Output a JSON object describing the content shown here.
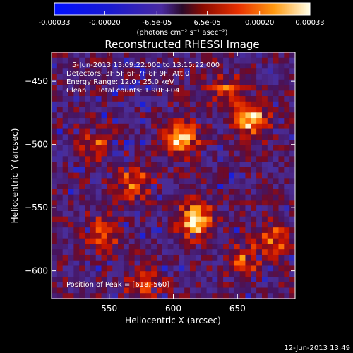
{
  "chart_data": {
    "type": "heatmap",
    "title": "Reconstructed RHESSI Image",
    "xlabel": "Heliocentric X (arcsec)",
    "ylabel": "Heliocentric Y (arcsec)",
    "xlim": [
      505,
      695
    ],
    "ylim": [
      -622,
      -427
    ],
    "x_ticks": [
      550,
      600,
      650
    ],
    "y_ticks": [
      -450,
      -500,
      -550,
      -600
    ],
    "colorbar": {
      "range": [
        -0.00033,
        0.00033
      ],
      "ticks": [
        {
          "value": -0.00033,
          "label": "-0.00033"
        },
        {
          "value": -0.0002,
          "label": "-0.00020"
        },
        {
          "value": -6.5e-05,
          "label": "-6.5e-05"
        },
        {
          "value": 6.5e-05,
          "label": "6.5e-05"
        },
        {
          "value": 0.0002,
          "label": "0.00020"
        },
        {
          "value": 0.00033,
          "label": "0.00033"
        }
      ],
      "unit_label": "(photons cm⁻² s⁻¹ asec⁻²)"
    },
    "annotations": [
      "5-Jun-2013 13:09:22.000 to 13:15:22.000",
      "Detectors: 3F 5F 6F 7F 8F 9F, Att 0",
      "Energy Range: 12.0 - 25.0 keV",
      "Clean     Total counts: 1.90E+04"
    ],
    "peak_label": "Position of Peak = [618,-560]",
    "peak_position": [
      618,
      -560
    ],
    "bright_sources": [
      {
        "x": 617,
        "y": -560,
        "level": 1.0
      },
      {
        "x": 605,
        "y": -495,
        "level": 0.92
      },
      {
        "x": 660,
        "y": -480,
        "level": 0.85
      },
      {
        "x": 570,
        "y": -530,
        "level": 0.55
      },
      {
        "x": 545,
        "y": -570,
        "level": 0.5
      },
      {
        "x": 680,
        "y": -575,
        "level": 0.55
      },
      {
        "x": 575,
        "y": -610,
        "level": 0.55
      },
      {
        "x": 540,
        "y": -500,
        "level": 0.45
      },
      {
        "x": 655,
        "y": -590,
        "level": 0.5
      },
      {
        "x": 640,
        "y": -455,
        "level": 0.45
      }
    ],
    "grid": false
  },
  "footer_date": "12-Jun-2013 13:49"
}
